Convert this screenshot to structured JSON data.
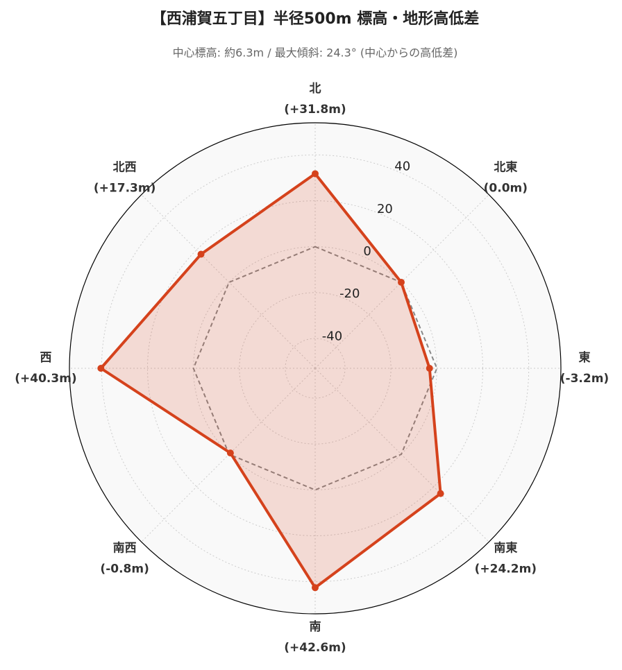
{
  "chart_data": {
    "type": "radar",
    "title": "【西浦賀五丁目】半径500m 標高・地形高低差",
    "subtitle": "中心標高: 約6.3m / 最大傾斜: 24.3°  (中心からの高低差)",
    "categories": [
      "北",
      "北東",
      "東",
      "南東",
      "南",
      "南西",
      "西",
      "北西"
    ],
    "values": [
      31.8,
      0.0,
      -3.2,
      24.2,
      42.6,
      -0.8,
      40.3,
      17.3
    ],
    "value_labels": [
      "(+31.8m)",
      "(0.0m)",
      "(-3.2m)",
      "(+24.2m)",
      "(+42.6m)",
      "(-0.8m)",
      "(+40.3m)",
      "(+17.3m)"
    ],
    "color": "#d5421c",
    "reference": 0,
    "ylim": [
      -53,
      54
    ],
    "yticks": [
      -40,
      -20,
      0,
      20,
      40
    ],
    "grid": true
  }
}
